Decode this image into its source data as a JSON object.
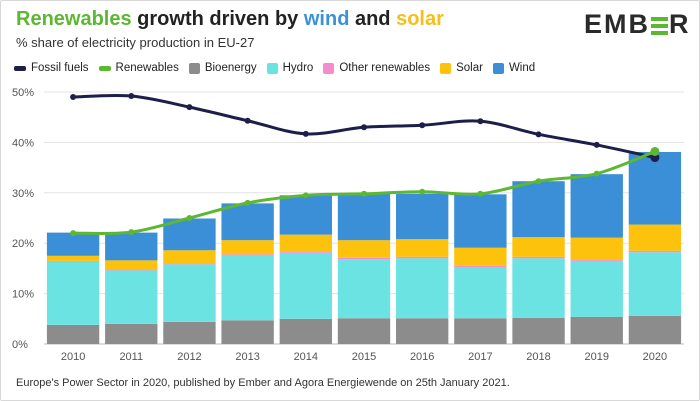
{
  "header": {
    "title_parts": [
      "Renewables",
      " growth driven by ",
      "wind",
      " and ",
      "solar"
    ],
    "subtitle": "% share of electricity production in EU-27",
    "logo": "EMBER"
  },
  "footer": {
    "text": "Europe's Power Sector in 2020, published by Ember and Agora Energiewende on 25th January 2021."
  },
  "chart_data": {
    "type": "bar",
    "stacked": true,
    "title": "Renewables growth driven by wind and solar",
    "subtitle": "% share of electricity production in EU-27",
    "categories": [
      "2010",
      "2011",
      "2012",
      "2013",
      "2014",
      "2015",
      "2016",
      "2017",
      "2018",
      "2019",
      "2020"
    ],
    "ylim": [
      0,
      50
    ],
    "yticks": [
      0,
      10,
      20,
      30,
      40,
      50
    ],
    "ytick_labels": [
      "0%",
      "10%",
      "20%",
      "30%",
      "40%",
      "50%"
    ],
    "grid": true,
    "legend_position": "top-left",
    "series": [
      {
        "name": "Bioenergy",
        "kind": "bar",
        "color": "#8c8c8c",
        "values": [
          3.8,
          4.0,
          4.4,
          4.7,
          5.0,
          5.1,
          5.1,
          5.1,
          5.2,
          5.4,
          5.6
        ]
      },
      {
        "name": "Hydro",
        "kind": "bar",
        "color": "#6ce3e3",
        "values": [
          12.5,
          10.6,
          11.4,
          12.8,
          13.1,
          11.7,
          11.9,
          10.1,
          11.8,
          11.1,
          12.6
        ]
      },
      {
        "name": "Other renewables",
        "kind": "bar",
        "color": "#f48dd0",
        "values": [
          0.2,
          0.2,
          0.2,
          0.3,
          0.3,
          0.3,
          0.3,
          0.3,
          0.3,
          0.3,
          0.3
        ]
      },
      {
        "name": "Solar",
        "kind": "bar",
        "color": "#fdc20c",
        "values": [
          1.0,
          1.8,
          2.6,
          2.8,
          3.3,
          3.5,
          3.5,
          3.6,
          3.9,
          4.3,
          5.2
        ]
      },
      {
        "name": "Wind",
        "kind": "bar",
        "color": "#3b8fd6",
        "values": [
          4.6,
          5.5,
          6.3,
          7.3,
          7.8,
          9.2,
          9.0,
          10.6,
          11.1,
          12.6,
          14.4
        ]
      },
      {
        "name": "Fossil fuels",
        "kind": "line",
        "color": "#1e1e4a",
        "values": [
          49.0,
          49.2,
          47.0,
          44.3,
          41.7,
          43.0,
          43.4,
          44.2,
          41.6,
          39.5,
          37.0
        ]
      },
      {
        "name": "Renewables",
        "kind": "line",
        "color": "#5cb833",
        "values": [
          22.0,
          22.2,
          25.0,
          28.0,
          29.5,
          29.8,
          30.2,
          29.8,
          32.3,
          33.8,
          38.2
        ]
      }
    ],
    "legend": [
      {
        "name": "Fossil fuels",
        "color": "#1e1e4a",
        "marker": "line"
      },
      {
        "name": "Renewables",
        "color": "#5cb833",
        "marker": "line"
      },
      {
        "name": "Bioenergy",
        "color": "#8c8c8c",
        "marker": "box"
      },
      {
        "name": "Hydro",
        "color": "#6ce3e3",
        "marker": "box"
      },
      {
        "name": "Other renewables",
        "color": "#f48dd0",
        "marker": "box"
      },
      {
        "name": "Solar",
        "color": "#fdc20c",
        "marker": "box"
      },
      {
        "name": "Wind",
        "color": "#3b8fd6",
        "marker": "box"
      }
    ]
  }
}
